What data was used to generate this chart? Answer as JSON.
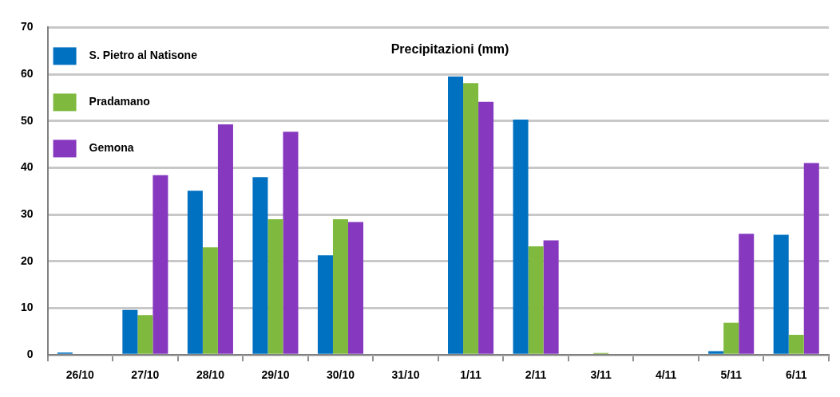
{
  "chart_data": {
    "type": "bar",
    "title": "Precipitazioni (mm)",
    "categories": [
      "26/10",
      "27/10",
      "28/10",
      "29/10",
      "30/10",
      "31/10",
      "1/11",
      "2/11",
      "3/11",
      "4/11",
      "5/11",
      "6/11"
    ],
    "series": [
      {
        "name": "S. Pietro al Natisone",
        "color": "#0070c0",
        "values": [
          0.5,
          9.6,
          35.1,
          38,
          21.3,
          null,
          59.5,
          50.3,
          0,
          0,
          0.8,
          25.7
        ]
      },
      {
        "name": "Pradamano",
        "color": "#7fba3f",
        "values": [
          null,
          8.5,
          23,
          29,
          29,
          null,
          58.1,
          23.2,
          0.4,
          0,
          6.9,
          4.3
        ]
      },
      {
        "name": "Gemona",
        "color": "#8639bf",
        "values": [
          null,
          38.4,
          49.3,
          47.7,
          28.4,
          0,
          54.1,
          24.5,
          null,
          0,
          25.9,
          41
        ]
      }
    ],
    "ylim": [
      0,
      70
    ],
    "yticks": [
      0,
      10,
      20,
      30,
      40,
      50,
      60,
      70
    ],
    "grid": "y",
    "legend": "top left"
  }
}
